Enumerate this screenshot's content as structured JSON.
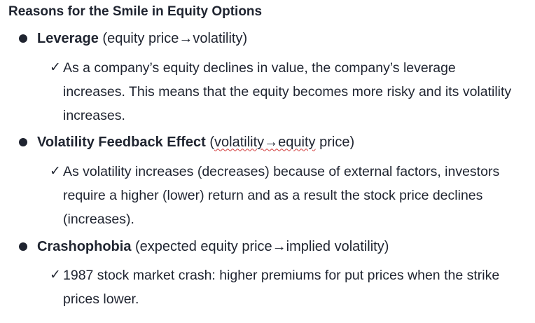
{
  "title": "Reasons for the Smile in Equity Options",
  "bullets": [
    {
      "heading": "Leverage",
      "detail": "(equity price→volatility)",
      "check": "✓",
      "text": "As a company’s equity declines in value, the company’s leverage increases. This means that the equity becomes more risky and its volatility increases."
    },
    {
      "heading": "Volatility Feedback Effect",
      "detail_open": "(",
      "detail_spell": "volatility→equity",
      "detail_close": " price)",
      "check": "✓",
      "text": "As volatility increases (decreases) because of external factors, investors require a higher (lower) return and as a result the stock price declines (increases)."
    },
    {
      "heading": "Crashophobia",
      "detail": "(expected equity price→implied volatility)",
      "check": "✓",
      "text": "1987 stock market crash: higher premiums for put prices when the strike prices lower."
    }
  ],
  "colors": {
    "text": "#1f2430",
    "spellcheck_underline": "#d23b3b",
    "background": "#ffffff"
  }
}
